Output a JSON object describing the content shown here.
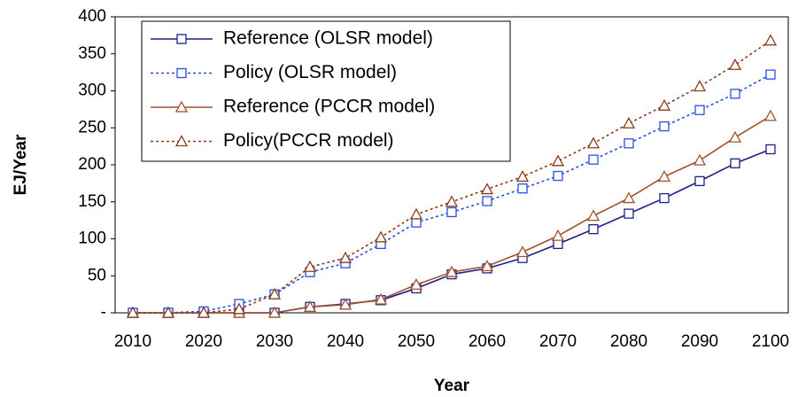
{
  "chart_data": {
    "type": "line",
    "x_label": "Year",
    "y_label": "EJ/Year",
    "categories": [
      "2010",
      null,
      "2020",
      null,
      "2030",
      null,
      "2040",
      null,
      "2050",
      null,
      "2060",
      null,
      "2070",
      null,
      "2080",
      null,
      "2090",
      null,
      "2100"
    ],
    "ylim": [
      0,
      400
    ],
    "yticks": [
      {
        "value": 0,
        "label": "-"
      },
      50,
      100,
      150,
      200,
      250,
      300,
      350,
      400
    ],
    "legend": "upper left",
    "series": [
      {
        "name": "Reference (OLSR model)",
        "color": "#1f1f8c",
        "marker": "square",
        "line_style": "solid",
        "values": [
          0,
          0,
          0,
          0,
          0,
          8,
          12,
          17,
          33,
          52,
          60,
          74,
          93,
          113,
          134,
          155,
          178,
          202,
          221
        ]
      },
      {
        "name": "Policy (OLSR model)",
        "color": "#2a4fe0",
        "marker": "square",
        "line_style": "dotted",
        "values": [
          0,
          0,
          2,
          12,
          25,
          55,
          67,
          93,
          122,
          136,
          151,
          168,
          185,
          207,
          229,
          252,
          274,
          296,
          322
        ]
      },
      {
        "name": "Reference (PCCR model)",
        "color": "#a0522d",
        "marker": "triangle",
        "line_style": "solid",
        "values": [
          0,
          0,
          0,
          0,
          0,
          8,
          11,
          18,
          38,
          55,
          63,
          82,
          104,
          131,
          155,
          184,
          206,
          237,
          266
        ]
      },
      {
        "name": "Policy(PCCR model)",
        "color": "#8b3a1a",
        "marker": "triangle",
        "line_style": "dotted",
        "values": [
          0,
          0,
          0,
          5,
          25,
          62,
          74,
          102,
          133,
          150,
          167,
          184,
          205,
          229,
          256,
          280,
          306,
          335,
          368
        ]
      }
    ]
  }
}
